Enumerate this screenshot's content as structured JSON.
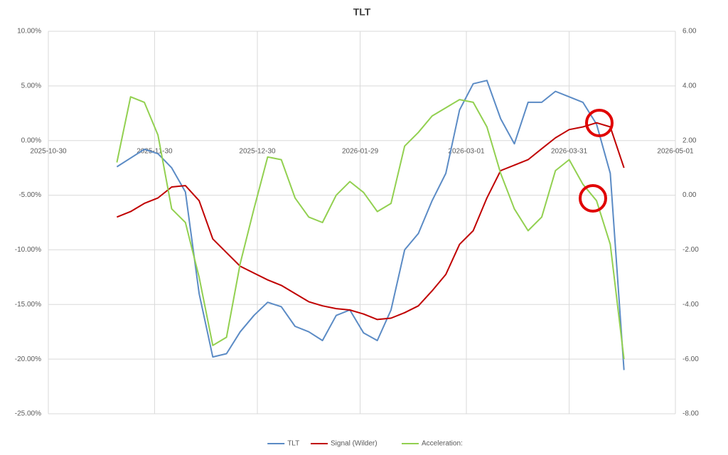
{
  "chart_data": {
    "type": "line",
    "title": "TLT",
    "x": [
      "2025-11-19",
      "2025-11-23",
      "2025-11-27",
      "2025-12-01",
      "2025-12-05",
      "2025-12-09",
      "2025-12-13",
      "2025-12-17",
      "2025-12-21",
      "2025-12-25",
      "2025-12-29",
      "2026-01-02",
      "2026-01-06",
      "2026-01-10",
      "2026-01-14",
      "2026-01-18",
      "2026-01-22",
      "2026-01-26",
      "2026-01-30",
      "2026-02-03",
      "2026-02-07",
      "2026-02-11",
      "2026-02-15",
      "2026-02-19",
      "2026-02-23",
      "2026-02-27",
      "2026-03-03",
      "2026-03-07",
      "2026-03-11",
      "2026-03-15",
      "2026-03-19",
      "2026-03-23",
      "2026-03-27",
      "2026-03-31",
      "2026-04-04",
      "2026-04-08",
      "2026-04-12",
      "2026-04-16"
    ],
    "xlim": [
      "2025-10-30",
      "2026-05-01"
    ],
    "xticks": [
      "2025-10-30",
      "2025-11-30",
      "2025-12-30",
      "2026-01-29",
      "2026-03-01",
      "2026-03-31",
      "2026-05-01"
    ],
    "ylim": [
      -25,
      10
    ],
    "yticks": [
      {
        "value": -25,
        "label": "-25.00%"
      },
      {
        "value": -20,
        "label": "-20.00%"
      },
      {
        "value": -15,
        "label": "-15.00%"
      },
      {
        "value": -10,
        "label": "-10.00%"
      },
      {
        "value": -5,
        "label": "-5.00%"
      },
      {
        "value": 0,
        "label": "0.00%"
      },
      {
        "value": 5,
        "label": "5.00%"
      },
      {
        "value": 10,
        "label": "10.00%"
      }
    ],
    "y2lim": [
      -8,
      6
    ],
    "y2ticks": [
      {
        "value": -8,
        "label": "-8.00"
      },
      {
        "value": -6,
        "label": "-6.00"
      },
      {
        "value": -4,
        "label": "-4.00"
      },
      {
        "value": -2,
        "label": "-2.00"
      },
      {
        "value": 0,
        "label": "0.00"
      },
      {
        "value": 2,
        "label": "2.00"
      },
      {
        "value": 4,
        "label": "4.00"
      },
      {
        "value": 6,
        "label": "6.00"
      }
    ],
    "grid": true,
    "legend": "bottom",
    "series": [
      {
        "name": "TLT",
        "color": "#5b8bc5",
        "values": [
          -2.4,
          -1.6,
          -0.8,
          -1.2,
          -2.5,
          -4.7,
          -14,
          -19.8,
          -19.5,
          -17.5,
          -16,
          -14.8,
          -15.2,
          -17,
          -17.5,
          -18.3,
          -16,
          -15.5,
          -17.6,
          -18.3,
          -15.5,
          -10,
          -8.5,
          -5.5,
          -3,
          2.8,
          5.2,
          5.5,
          2,
          -0.3,
          3.5,
          3.5,
          4.5,
          4,
          3.5,
          1.5,
          -3,
          -21
        ]
      },
      {
        "name": "Signal (Wilder)",
        "color": "#c00000",
        "axis": "y2",
        "values": [
          -0.8,
          -0.6,
          -0.3,
          -0.1,
          0.3,
          0.35,
          -0.2,
          -1.6,
          -2.1,
          -2.6,
          -2.85,
          -3.1,
          -3.3,
          -3.6,
          -3.9,
          -4.05,
          -4.15,
          -4.2,
          -4.35,
          -4.55,
          -4.5,
          -4.3,
          -4.05,
          -3.5,
          -2.9,
          -1.8,
          -1.3,
          -0.1,
          0.9,
          1.1,
          1.3,
          1.7,
          2.1,
          2.4,
          2.5,
          2.65,
          2.5,
          1.0
        ]
      },
      {
        "name": "Acceleration:",
        "color": "#92d050",
        "axis": "y2",
        "values": [
          1.2,
          3.6,
          3.4,
          2.2,
          -0.5,
          -1.0,
          -3.0,
          -5.5,
          -5.2,
          -2.5,
          -0.5,
          1.4,
          1.3,
          -0.1,
          -0.8,
          -1.0,
          0,
          0.5,
          0.1,
          -0.6,
          -0.3,
          1.8,
          2.3,
          2.9,
          3.2,
          3.5,
          3.4,
          2.5,
          0.8,
          -0.5,
          -1.3,
          -0.8,
          0.9,
          1.3,
          0.4,
          -0.2,
          -1.8,
          -6.0
        ]
      }
    ]
  }
}
